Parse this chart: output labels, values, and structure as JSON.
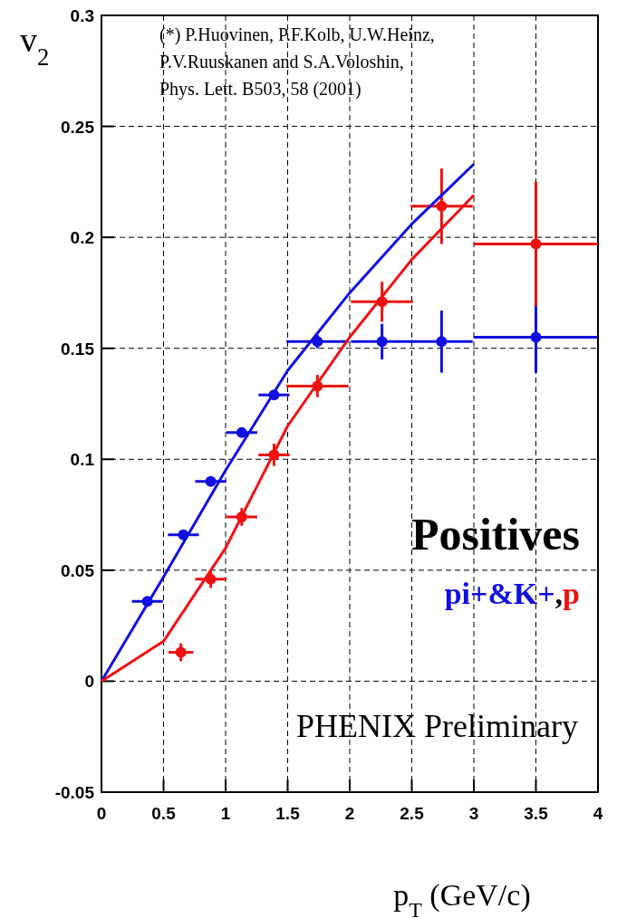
{
  "chart_data": {
    "type": "scatter",
    "xlabel": "p$_{T}$ (GeV/c)",
    "ylabel": "v$_{2}$",
    "legend_title": "Positives",
    "legend": "bottom right",
    "grid": true,
    "marker": "circle",
    "xlim": [
      0,
      4
    ],
    "xticks": [
      0,
      0.5,
      1,
      1.5,
      2,
      2.5,
      3,
      3.5,
      4
    ],
    "ylim": [
      -0.05,
      0.3
    ],
    "yticks": [
      -0.05,
      0,
      0.05,
      0.1,
      0.15,
      0.2,
      0.25,
      0.3
    ],
    "annotations": [
      "(*) P.Huovinen, P.F.Kolb, U.W.Heinz, P.V.Ruuskanen and S.A.Voloshin, Phys. Lett. B503, 58 (2001)",
      "PHENIX Preliminary",
      ","
    ],
    "series": [
      {
        "name": "pi+&K+",
        "color": "#1010e0",
        "x": [
          0.37,
          0.66,
          0.88,
          1.13,
          1.39,
          1.74,
          2.26,
          2.74,
          3.5
        ],
        "values": [
          0.036,
          0.066,
          0.09,
          0.112,
          0.129,
          0.153,
          0.153,
          0.153,
          0.155
        ],
        "xerrors": [
          0.125,
          0.125,
          0.125,
          0.125,
          0.125,
          0.25,
          0.25,
          0.25,
          0.5
        ],
        "errors": [
          0.002,
          0.002,
          0.002,
          0.002,
          0.002,
          0.003,
          0.008,
          0.014,
          0.016
        ]
      },
      {
        "name": "p",
        "color": "#f01010",
        "x": [
          0.64,
          0.88,
          1.13,
          1.39,
          1.74,
          2.26,
          2.74,
          3.5
        ],
        "values": [
          0.013,
          0.046,
          0.074,
          0.102,
          0.133,
          0.171,
          0.214,
          0.197
        ],
        "xerrors": [
          0.1,
          0.125,
          0.125,
          0.125,
          0.25,
          0.25,
          0.25,
          0.5
        ],
        "errors": [
          0.004,
          0.004,
          0.004,
          0.005,
          0.005,
          0.009,
          0.017,
          0.028
        ]
      },
      {
        "type": "line",
        "marker": "none",
        "color": "#1010e0",
        "x": [
          0,
          0.5,
          1,
          1.5,
          2,
          2.5,
          3
        ],
        "values": [
          0,
          0.047,
          0.095,
          0.14,
          0.175,
          0.206,
          0.233
        ]
      },
      {
        "type": "line",
        "marker": "none",
        "color": "#f01010",
        "x": [
          0,
          0.5,
          1,
          1.5,
          2,
          2.5,
          3
        ],
        "values": [
          0,
          0.018,
          0.06,
          0.115,
          0.155,
          0.19,
          0.219
        ]
      }
    ]
  }
}
